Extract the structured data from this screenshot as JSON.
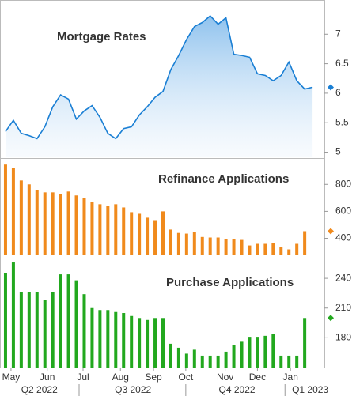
{
  "chart_data": [
    {
      "type": "line",
      "title": "Mortgage Rates",
      "color": "#1a7fd4",
      "x": [
        0,
        1,
        2,
        3,
        4,
        5,
        6,
        7,
        8,
        9,
        10,
        11,
        12,
        13,
        14,
        15,
        16,
        17,
        18,
        19,
        20,
        21,
        22,
        23,
        24,
        25,
        26,
        27,
        28,
        29,
        30,
        31,
        32,
        33,
        34,
        35,
        36,
        37,
        38,
        39
      ],
      "values": [
        5.35,
        5.54,
        5.32,
        5.28,
        5.23,
        5.43,
        5.77,
        5.97,
        5.9,
        5.56,
        5.7,
        5.79,
        5.59,
        5.32,
        5.23,
        5.4,
        5.43,
        5.63,
        5.77,
        5.93,
        6.03,
        6.4,
        6.64,
        6.91,
        7.13,
        7.2,
        7.31,
        7.17,
        7.28,
        6.66,
        6.64,
        6.61,
        6.33,
        6.3,
        6.21,
        6.3,
        6.53,
        6.21,
        6.07,
        6.1
      ],
      "ylim": [
        4.9,
        7.58
      ],
      "yticks": [
        5,
        5.5,
        6,
        6.5,
        7
      ]
    },
    {
      "type": "bar",
      "title": "Refinance Applications",
      "color": "#f08a1c",
      "x": [
        0,
        1,
        2,
        3,
        4,
        5,
        6,
        7,
        8,
        9,
        10,
        11,
        12,
        13,
        14,
        15,
        16,
        17,
        18,
        19,
        20,
        21,
        22,
        23,
        24,
        25,
        26,
        27,
        28,
        29,
        30,
        31,
        32,
        33,
        34,
        35,
        36,
        37,
        38
      ],
      "values": [
        947,
        924,
        829,
        800,
        759,
        741,
        741,
        729,
        747,
        718,
        700,
        671,
        653,
        641,
        653,
        629,
        594,
        582,
        553,
        535,
        600,
        465,
        440,
        435,
        447,
        410,
        406,
        406,
        394,
        394,
        388,
        347,
        359,
        359,
        365,
        335,
        318,
        359,
        453
      ],
      "ylim": [
        280,
        995
      ],
      "yticks": [
        400,
        600,
        800
      ]
    },
    {
      "type": "bar",
      "title": "Purchase Applications",
      "color": "#22a81e",
      "x": [
        0,
        1,
        2,
        3,
        4,
        5,
        6,
        7,
        8,
        9,
        10,
        11,
        12,
        13,
        14,
        15,
        16,
        17,
        18,
        19,
        20,
        21,
        22,
        23,
        24,
        25,
        26,
        27,
        28,
        29,
        30,
        31,
        32,
        33,
        34,
        35,
        36,
        37,
        38
      ],
      "values": [
        245,
        256,
        226,
        226,
        226,
        218,
        226,
        244,
        244,
        238,
        224,
        210,
        208,
        208,
        206,
        205,
        202,
        200,
        198,
        200,
        200,
        174,
        170,
        164,
        168,
        162,
        162,
        162,
        166,
        173,
        176,
        181,
        181,
        182,
        184,
        162,
        162,
        162,
        200
      ],
      "ylim": [
        150,
        264
      ],
      "yticks": [
        180,
        210,
        240
      ]
    }
  ],
  "x_axis": {
    "xlim": [
      -0.7,
      40.5
    ],
    "xticks": [
      {
        "value": 0.7,
        "label": "May"
      },
      {
        "value": 5.3,
        "label": "Jun"
      },
      {
        "value": 9.85,
        "label": "Jul"
      },
      {
        "value": 14.6,
        "label": "Aug"
      },
      {
        "value": 18.8,
        "label": "Sep"
      },
      {
        "value": 22.9,
        "label": "Oct"
      },
      {
        "value": 27.9,
        "label": "Nov"
      },
      {
        "value": 32,
        "label": "Dec"
      },
      {
        "value": 36.2,
        "label": "Jan"
      }
    ],
    "quarters": [
      {
        "value": 4.3,
        "label": "Q2 2022"
      },
      {
        "value": 16.2,
        "label": "Q3 2022"
      },
      {
        "value": 29.4,
        "label": "Q4 2022"
      },
      {
        "value": 38.7,
        "label": "Q1 2023"
      }
    ],
    "quarter_dividers": [
      9.35,
      22.9,
      35.5
    ]
  }
}
